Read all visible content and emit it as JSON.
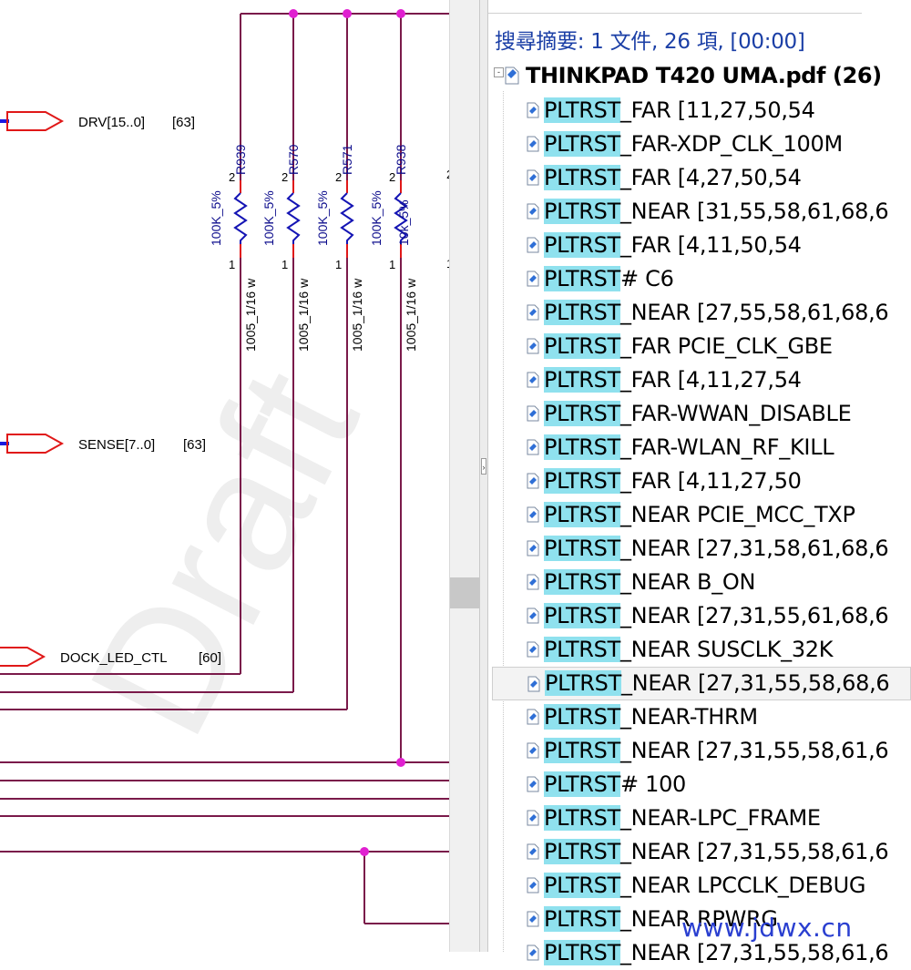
{
  "schematic": {
    "watermark_text": "Draft",
    "ports": [
      {
        "name": "DRV[15..0]",
        "ref": "[63]"
      },
      {
        "name": "SENSE[7..0]",
        "ref": "[63]"
      },
      {
        "name": "DOCK_LED_CTL",
        "ref": "[60]"
      }
    ],
    "resistors": [
      {
        "designator": "R939",
        "value": "100K_5%",
        "package": "1005_1/16 w",
        "pin_top": "2",
        "pin_bottom": "1"
      },
      {
        "designator": "R570",
        "value": "100K_5%",
        "package": "1005_1/16 w",
        "pin_top": "2",
        "pin_bottom": "1"
      },
      {
        "designator": "R571",
        "value": "100K_5%",
        "package": "1005_1/16 w",
        "pin_top": "2",
        "pin_bottom": "1"
      },
      {
        "designator": "R938",
        "value": "100K_5%",
        "package": "1005_1/16 w",
        "pin_top": "2",
        "pin_bottom": "1"
      },
      {
        "designator": "",
        "value": "10k_5%",
        "package": "",
        "pin_top": "2",
        "pin_bottom": "1"
      }
    ],
    "colors": {
      "wire": "#7a1a4a",
      "junction": "#e020d0",
      "port": "#e01818",
      "bus": "#1a1ae0",
      "resistor": "#1414b4",
      "label": "#0c0c8c"
    }
  },
  "search_panel": {
    "summary": "搜尋摘要: 1 文件, 26 項, [00:00]",
    "file": {
      "title": "THINKPAD T420 UMA.pdf (26)",
      "expander": "-"
    },
    "highlight_color": "#8fe1ee",
    "results": [
      {
        "match": "PLTRST",
        "rest": "_FAR [11,27,50,54"
      },
      {
        "match": "PLTRST",
        "rest": "_FAR-XDP_CLK_100M"
      },
      {
        "match": "PLTRST",
        "rest": "_FAR [4,27,50,54"
      },
      {
        "match": "PLTRST",
        "rest": "_NEAR [31,55,58,61,68,6"
      },
      {
        "match": "PLTRST",
        "rest": "_FAR [4,11,50,54"
      },
      {
        "match": "PLTRST",
        "rest": "# C6"
      },
      {
        "match": "PLTRST",
        "rest": "_NEAR [27,55,58,61,68,6"
      },
      {
        "match": "PLTRST",
        "rest": "_FAR PCIE_CLK_GBE"
      },
      {
        "match": "PLTRST",
        "rest": "_FAR [4,11,27,54"
      },
      {
        "match": "PLTRST",
        "rest": "_FAR-WWAN_DISABLE"
      },
      {
        "match": "PLTRST",
        "rest": "_FAR-WLAN_RF_KILL"
      },
      {
        "match": "PLTRST",
        "rest": "_FAR [4,11,27,50"
      },
      {
        "match": "PLTRST",
        "rest": "_NEAR PCIE_MCC_TXP"
      },
      {
        "match": "PLTRST",
        "rest": "_NEAR [27,31,58,61,68,6"
      },
      {
        "match": "PLTRST",
        "rest": "_NEAR B_ON"
      },
      {
        "match": "PLTRST",
        "rest": "_NEAR [27,31,55,61,68,6"
      },
      {
        "match": "PLTRST",
        "rest": "_NEAR SUSCLK_32K"
      },
      {
        "match": "PLTRST",
        "rest": "_NEAR [27,31,55,58,68,6",
        "selected": true
      },
      {
        "match": "PLTRST",
        "rest": "_NEAR-THRM"
      },
      {
        "match": "PLTRST",
        "rest": "_NEAR [27,31,55,58,61,6"
      },
      {
        "match": "PLTRST",
        "rest": "# 100"
      },
      {
        "match": "PLTRST",
        "rest": "_NEAR-LPC_FRAME"
      },
      {
        "match": "PLTRST",
        "rest": "_NEAR [27,31,55,58,61,6"
      },
      {
        "match": "PLTRST",
        "rest": "_NEAR LPCCLK_DEBUG"
      },
      {
        "match": "PLTRST",
        "rest": "_NEAR RPWRG"
      },
      {
        "match": "PLTRST",
        "rest": "_NEAR [27,31,55,58,61,6"
      }
    ]
  },
  "watermark": "www.jdwx.cn"
}
